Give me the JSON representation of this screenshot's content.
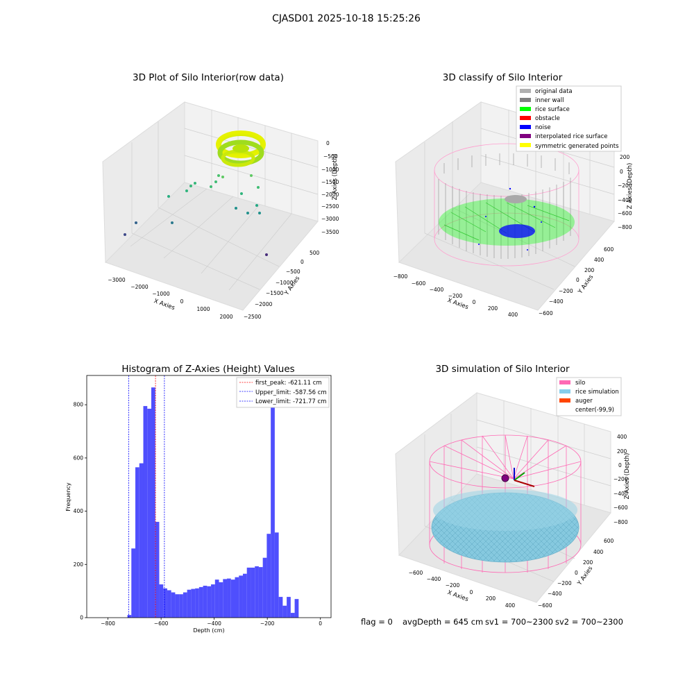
{
  "figure": {
    "suptitle": "CJASD01 2025-10-18 15:25:26",
    "footer": {
      "flag": "flag = 0",
      "avg_depth": "avgDepth = 645 cm",
      "sv1": "sv1 = 700~2300",
      "sv2": "sv2 = 700~2300"
    }
  },
  "colors": {
    "histogram_bar": "#4f4ffd",
    "first_peak_line": "#ff0000",
    "limit_lines": "#0000ff",
    "silo_wire": "#ff69b4",
    "rice_surface": "#7ec8e0",
    "classify_rice": "#00ff00",
    "classify_noise": "#0000ff",
    "classify_wall": "#808080"
  },
  "chart_data": [
    {
      "type": "scatter",
      "title": "3D Plot of Silo Interior(row data)",
      "xlabel": "X Axies",
      "ylabel": "Y Axies",
      "zlabel": "Z Axies (Depth)",
      "x_ticks": [
        "−3000",
        "−2000",
        "−1000",
        "0",
        "1000",
        "2000"
      ],
      "y_ticks": [
        "500",
        "0",
        "−500",
        "−1000",
        "−1500",
        "−2000",
        "−2500"
      ],
      "z_ticks": [
        "0",
        "−500",
        "−1000",
        "−1500",
        "−2000",
        "−2500",
        "−3000",
        "−3500"
      ],
      "grid": true
    },
    {
      "type": "scatter",
      "title": "3D classify of Silo Interior",
      "xlabel": "X Axies",
      "ylabel": "Y Axies",
      "zlabel": "Z Axies (Depth)",
      "x_ticks": [
        "−800",
        "−600",
        "−400",
        "−200",
        "0",
        "200",
        "400"
      ],
      "y_ticks": [
        "600",
        "400",
        "200",
        "0",
        "−200",
        "−400",
        "−600"
      ],
      "z_ticks": [
        "200",
        "0",
        "−200",
        "−400",
        "−600",
        "−800"
      ],
      "legend_position": "top-right",
      "legend": [
        {
          "label": "original data",
          "color": "#b0b0b0"
        },
        {
          "label": "inner wall",
          "color": "#808080"
        },
        {
          "label": "rice surface",
          "color": "#00ff00"
        },
        {
          "label": "obstacle",
          "color": "#ff0000"
        },
        {
          "label": "noise",
          "color": "#0000ff"
        },
        {
          "label": "interpolated rice surface",
          "color": "#800080"
        },
        {
          "label": "symmetric generated points",
          "color": "#ffff00"
        }
      ],
      "grid": true
    },
    {
      "type": "bar",
      "title": "Histogram of Z-Axies (Height) Values",
      "xlabel": "Depth (cm)",
      "ylabel": "Frequency",
      "xlim": [
        -880,
        40
      ],
      "ylim": [
        0,
        910
      ],
      "x_ticks": [
        {
          "value": -800,
          "label": "−800"
        },
        {
          "value": -600,
          "label": "−600"
        },
        {
          "value": -400,
          "label": "−400"
        },
        {
          "value": -200,
          "label": "−200"
        },
        {
          "value": 0,
          "label": "0"
        }
      ],
      "y_ticks": [
        0,
        200,
        400,
        600,
        800
      ],
      "bin_width": 15,
      "bins": [
        {
          "start": -727,
          "count": 10
        },
        {
          "start": -712,
          "count": 260
        },
        {
          "start": -697,
          "count": 565
        },
        {
          "start": -682,
          "count": 580
        },
        {
          "start": -667,
          "count": 795
        },
        {
          "start": -652,
          "count": 785
        },
        {
          "start": -637,
          "count": 865
        },
        {
          "start": -622,
          "count": 360
        },
        {
          "start": -607,
          "count": 125
        },
        {
          "start": -592,
          "count": 110
        },
        {
          "start": -577,
          "count": 103
        },
        {
          "start": -562,
          "count": 95
        },
        {
          "start": -547,
          "count": 88
        },
        {
          "start": -532,
          "count": 88
        },
        {
          "start": -517,
          "count": 95
        },
        {
          "start": -502,
          "count": 105
        },
        {
          "start": -487,
          "count": 108
        },
        {
          "start": -472,
          "count": 110
        },
        {
          "start": -457,
          "count": 115
        },
        {
          "start": -442,
          "count": 120
        },
        {
          "start": -427,
          "count": 118
        },
        {
          "start": -412,
          "count": 125
        },
        {
          "start": -397,
          "count": 143
        },
        {
          "start": -382,
          "count": 133
        },
        {
          "start": -367,
          "count": 145
        },
        {
          "start": -352,
          "count": 147
        },
        {
          "start": -337,
          "count": 143
        },
        {
          "start": -322,
          "count": 152
        },
        {
          "start": -307,
          "count": 158
        },
        {
          "start": -292,
          "count": 165
        },
        {
          "start": -277,
          "count": 188
        },
        {
          "start": -262,
          "count": 188
        },
        {
          "start": -247,
          "count": 193
        },
        {
          "start": -232,
          "count": 190
        },
        {
          "start": -217,
          "count": 225
        },
        {
          "start": -202,
          "count": 315
        },
        {
          "start": -187,
          "count": 795
        },
        {
          "start": -172,
          "count": 320
        },
        {
          "start": -157,
          "count": 78
        },
        {
          "start": -142,
          "count": 45
        },
        {
          "start": -127,
          "count": 78
        },
        {
          "start": -112,
          "count": 18
        },
        {
          "start": -97,
          "count": 70
        }
      ],
      "vlines": [
        {
          "label": "first_peak: -621.11 cm",
          "x": -621.11,
          "color": "#ff0000"
        },
        {
          "label": "Upper_limit: -587.56 cm",
          "x": -587.56,
          "color": "#0000ff"
        },
        {
          "label": "Lower_limit: -721.77 cm",
          "x": -721.77,
          "color": "#0000ff"
        }
      ],
      "legend_position": "top-right",
      "grid": false
    },
    {
      "type": "scatter",
      "title": "3D simulation of Silo Interior",
      "xlabel": "X Axies",
      "ylabel": "Y Axies",
      "zlabel": "Z Axies (Depth)",
      "x_ticks": [
        "−600",
        "−400",
        "−200",
        "0",
        "200",
        "400"
      ],
      "y_ticks": [
        "600",
        "400",
        "200",
        "0",
        "−200",
        "−400",
        "−600"
      ],
      "z_ticks": [
        "400",
        "200",
        "0",
        "−200",
        "−400",
        "−600",
        "−800"
      ],
      "legend_position": "top-right",
      "legend": [
        {
          "label": "silo",
          "color": "#ff69b4"
        },
        {
          "label": "rice simulation",
          "color": "#87ceeb"
        },
        {
          "label": "auger",
          "color": "#ff4500"
        },
        {
          "label": "center(-99,9)",
          "color": ""
        }
      ],
      "grid": true
    }
  ]
}
